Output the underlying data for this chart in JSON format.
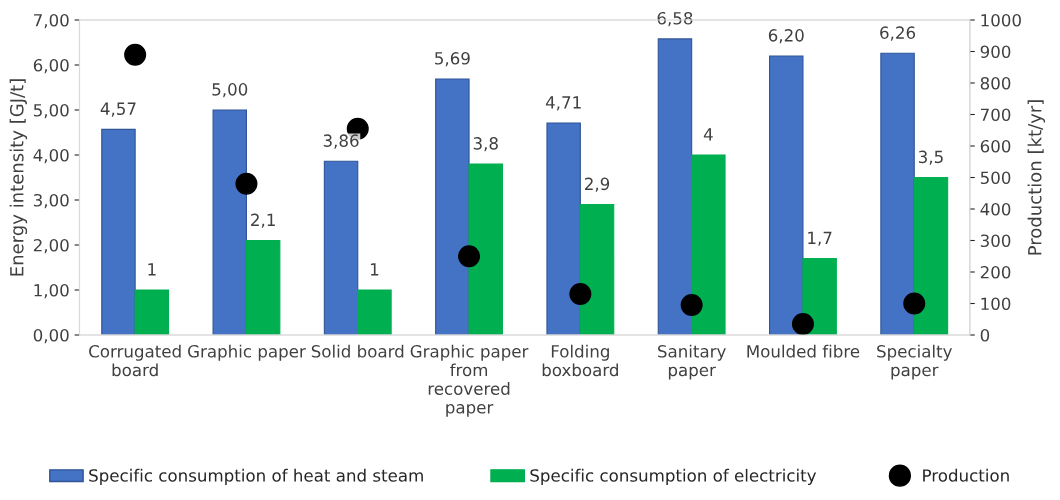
{
  "chart_data": {
    "type": "bar",
    "ylabel": "Energy intensity [GJ/t]",
    "y2label": "Production [kt/yr]",
    "categories": [
      "Corrugated board",
      "Graphic paper",
      "Solid board",
      "Graphic paper from recovered paper",
      "Folding boxboard",
      "Sanitary paper",
      "Moulded fibre",
      "Specialty paper"
    ],
    "series": [
      {
        "name": "Specific consumption of heat and steam",
        "color": "#4472c4",
        "values": [
          4.57,
          5.0,
          3.86,
          5.69,
          4.71,
          6.58,
          6.2,
          6.26
        ],
        "value_labels": [
          "4,57",
          "5,00",
          "3,86",
          "5,69",
          "4,71",
          "6,58",
          "6,20",
          "6,26"
        ]
      },
      {
        "name": "Specific consumption of electricity",
        "color": "#00b050",
        "values": [
          1,
          2.1,
          1,
          3.8,
          2.9,
          4,
          1.7,
          3.5
        ],
        "value_labels": [
          "1",
          "2,1",
          "1",
          "3,8",
          "2,9",
          "4",
          "1,7",
          "3,5"
        ]
      },
      {
        "name": "Production",
        "type": "scatter",
        "axis": "y2",
        "color": "#000000",
        "marker": "circle",
        "values": [
          890,
          480,
          655,
          250,
          130,
          95,
          35,
          100
        ]
      }
    ],
    "ylim": [
      0,
      7
    ],
    "yticks": [
      {
        "value": 0,
        "label": "0,00"
      },
      {
        "value": 1,
        "label": "1,00"
      },
      {
        "value": 2,
        "label": "2,00"
      },
      {
        "value": 3,
        "label": "3,00"
      },
      {
        "value": 4,
        "label": "4,00"
      },
      {
        "value": 5,
        "label": "5,00"
      },
      {
        "value": 6,
        "label": "6,00"
      },
      {
        "value": 7,
        "label": "7,00"
      }
    ],
    "y2lim": [
      0,
      1000
    ],
    "y2ticks": [
      0,
      100,
      200,
      300,
      400,
      500,
      600,
      700,
      800,
      900,
      1000
    ],
    "grid": false,
    "legend": "bottom"
  }
}
